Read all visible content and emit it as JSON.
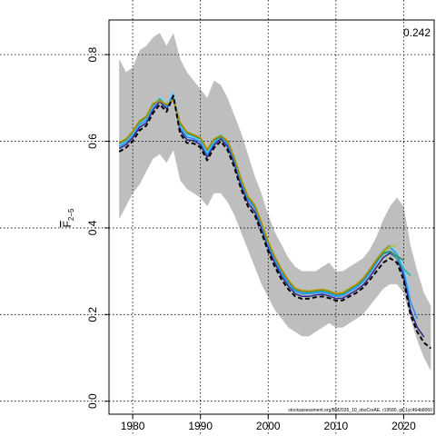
{
  "chart_data": {
    "type": "line",
    "title": "",
    "xlabel": "",
    "ylabel": "F2-5",
    "ylabel_main": "F",
    "ylabel_sub": "2−5",
    "corner_value": "0.242",
    "footer_note": "stockassessment.org/BM2026_10_obsCorAE, r19580, git:1cc464b8060",
    "xlim": [
      1976.5,
      2024.5
    ],
    "ylim": [
      -0.03,
      0.88
    ],
    "x_ticks": [
      1980,
      1990,
      2000,
      2010,
      2020
    ],
    "y_ticks": [
      0.0,
      0.2,
      0.4,
      0.6,
      0.8
    ],
    "x_tick_labels": [
      "1980",
      "1990",
      "2000",
      "2010",
      "2020"
    ],
    "y_tick_labels": [
      "0.0",
      "0.2",
      "0.4",
      "0.6",
      "0.8"
    ],
    "grid": true,
    "colors": {
      "band": "#bebebe",
      "main": "#000000",
      "retro": [
        "#2a2a8c",
        "#1e90ff",
        "#87ceeb",
        "#20b2aa",
        "#2e8b57",
        "#9acd32",
        "#b8860b"
      ]
    },
    "band": {
      "x": [
        1978,
        1979,
        1980,
        1981,
        1982,
        1983,
        1984,
        1985,
        1986,
        1987,
        1988,
        1989,
        1990,
        1991,
        1992,
        1993,
        1994,
        1995,
        1996,
        1997,
        1998,
        1999,
        2000,
        2001,
        2002,
        2003,
        2004,
        2005,
        2006,
        2007,
        2008,
        2009,
        2010,
        2011,
        2012,
        2013,
        2014,
        2015,
        2016,
        2017,
        2018,
        2019,
        2020,
        2021,
        2022,
        2023,
        2024
      ],
      "upper": [
        0.79,
        0.76,
        0.77,
        0.81,
        0.82,
        0.84,
        0.85,
        0.82,
        0.85,
        0.79,
        0.76,
        0.74,
        0.72,
        0.7,
        0.74,
        0.73,
        0.7,
        0.66,
        0.62,
        0.57,
        0.52,
        0.48,
        0.43,
        0.39,
        0.36,
        0.33,
        0.31,
        0.3,
        0.3,
        0.3,
        0.31,
        0.32,
        0.3,
        0.3,
        0.31,
        0.32,
        0.33,
        0.35,
        0.38,
        0.42,
        0.45,
        0.47,
        0.45,
        0.36,
        0.3,
        0.25,
        0.22
      ],
      "lower": [
        0.42,
        0.45,
        0.48,
        0.5,
        0.53,
        0.56,
        0.57,
        0.55,
        0.58,
        0.51,
        0.49,
        0.48,
        0.47,
        0.45,
        0.48,
        0.48,
        0.46,
        0.43,
        0.39,
        0.35,
        0.31,
        0.27,
        0.24,
        0.21,
        0.19,
        0.17,
        0.16,
        0.15,
        0.15,
        0.16,
        0.17,
        0.18,
        0.17,
        0.17,
        0.18,
        0.19,
        0.2,
        0.22,
        0.24,
        0.26,
        0.27,
        0.27,
        0.25,
        0.19,
        0.14,
        0.1,
        0.07
      ]
    },
    "series": [
      {
        "x": [
          1978,
          1979,
          1980,
          1981,
          1982,
          1983,
          1984,
          1985,
          1986,
          1987,
          1988,
          1989,
          1990,
          1991,
          1992,
          1993,
          1994,
          1995,
          1996,
          1997,
          1998,
          1999,
          2000,
          2001,
          2002,
          2003,
          2004,
          2005,
          2006,
          2007,
          2008,
          2009,
          2010,
          2011,
          2012,
          2013,
          2014,
          2015,
          2016,
          2017,
          2018,
          2019,
          2020,
          2021,
          2022,
          2023,
          2024
        ],
        "values": [
          0.576,
          0.585,
          0.6,
          0.625,
          0.636,
          0.665,
          0.685,
          0.668,
          0.705,
          0.618,
          0.596,
          0.595,
          0.586,
          0.556,
          0.585,
          0.6,
          0.58,
          0.54,
          0.49,
          0.45,
          0.43,
          0.39,
          0.345,
          0.31,
          0.28,
          0.258,
          0.242,
          0.236,
          0.237,
          0.24,
          0.242,
          0.238,
          0.232,
          0.233,
          0.242,
          0.25,
          0.262,
          0.28,
          0.3,
          0.32,
          0.33,
          0.32,
          0.28,
          0.2,
          0.16,
          0.135,
          0.122
        ],
        "dashed": true,
        "color_index": -1
      },
      {
        "x": [
          1978,
          1979,
          1980,
          1981,
          1982,
          1983,
          1984,
          1985,
          1986,
          1987,
          1988,
          1989,
          1990,
          1991,
          1992,
          1993,
          1994,
          1995,
          1996,
          1997,
          1998,
          1999,
          2000,
          2001,
          2002,
          2003,
          2004,
          2005,
          2006,
          2007,
          2008,
          2009,
          2010,
          2011,
          2012,
          2013,
          2014,
          2015,
          2016,
          2017,
          2018,
          2019,
          2020,
          2021,
          2022,
          2023
        ],
        "values": [
          0.583,
          0.592,
          0.608,
          0.632,
          0.642,
          0.672,
          0.692,
          0.675,
          0.708,
          0.626,
          0.603,
          0.602,
          0.592,
          0.563,
          0.591,
          0.606,
          0.588,
          0.548,
          0.498,
          0.458,
          0.438,
          0.398,
          0.353,
          0.318,
          0.288,
          0.265,
          0.248,
          0.242,
          0.242,
          0.245,
          0.247,
          0.243,
          0.237,
          0.238,
          0.247,
          0.256,
          0.268,
          0.287,
          0.31,
          0.332,
          0.342,
          0.33,
          0.29,
          0.21,
          0.17,
          0.148
        ],
        "dashed": false,
        "color_index": 0
      },
      {
        "x": [
          1978,
          1979,
          1980,
          1981,
          1982,
          1983,
          1984,
          1985,
          1986,
          1987,
          1988,
          1989,
          1990,
          1991,
          1992,
          1993,
          1994,
          1995,
          1996,
          1997,
          1998,
          1999,
          2000,
          2001,
          2002,
          2003,
          2004,
          2005,
          2006,
          2007,
          2008,
          2009,
          2010,
          2011,
          2012,
          2013,
          2014,
          2015,
          2016,
          2017,
          2018,
          2019,
          2020,
          2021,
          2022
        ],
        "values": [
          0.588,
          0.597,
          0.614,
          0.638,
          0.648,
          0.678,
          0.698,
          0.68,
          0.712,
          0.632,
          0.61,
          0.606,
          0.598,
          0.57,
          0.596,
          0.612,
          0.594,
          0.556,
          0.505,
          0.466,
          0.446,
          0.406,
          0.36,
          0.326,
          0.295,
          0.272,
          0.254,
          0.248,
          0.248,
          0.25,
          0.252,
          0.248,
          0.242,
          0.244,
          0.254,
          0.262,
          0.276,
          0.296,
          0.32,
          0.345,
          0.355,
          0.34,
          0.3,
          0.23,
          0.19
        ],
        "dashed": false,
        "color_index": 1
      },
      {
        "x": [
          1978,
          1979,
          1980,
          1981,
          1982,
          1983,
          1984,
          1985,
          1986,
          1987,
          1988,
          1989,
          1990,
          1991,
          1992,
          1993,
          1994,
          1995,
          1996,
          1997,
          1998,
          1999,
          2000,
          2001,
          2002,
          2003,
          2004,
          2005,
          2006,
          2007,
          2008,
          2009,
          2010,
          2011,
          2012,
          2013,
          2014,
          2015,
          2016,
          2017,
          2018,
          2019,
          2020,
          2021
        ],
        "values": [
          0.592,
          0.6,
          0.618,
          0.642,
          0.652,
          0.682,
          0.702,
          0.684,
          0.716,
          0.638,
          0.615,
          0.61,
          0.603,
          0.575,
          0.6,
          0.618,
          0.6,
          0.562,
          0.512,
          0.472,
          0.452,
          0.412,
          0.366,
          0.332,
          0.3,
          0.277,
          0.258,
          0.252,
          0.252,
          0.254,
          0.256,
          0.252,
          0.246,
          0.248,
          0.258,
          0.266,
          0.282,
          0.304,
          0.33,
          0.352,
          0.36,
          0.345,
          0.31,
          0.25
        ],
        "dashed": false,
        "color_index": 2
      },
      {
        "x": [
          1978,
          1979,
          1980,
          1981,
          1982,
          1983,
          1984,
          1985,
          1986,
          1987,
          1988,
          1989,
          1990,
          1991,
          1992,
          1993,
          1994,
          1995,
          1996,
          1997,
          1998,
          1999,
          2000,
          2001,
          2002,
          2003,
          2004,
          2005,
          2006,
          2007,
          2008,
          2009,
          2010,
          2011,
          2012,
          2013,
          2014,
          2015,
          2016,
          2017,
          2018,
          2019,
          2020,
          2021
        ],
        "values": [
          0.594,
          0.602,
          0.62,
          0.644,
          0.654,
          0.684,
          0.698,
          0.682,
          0.7,
          0.64,
          0.618,
          0.612,
          0.605,
          0.578,
          0.602,
          0.61,
          0.598,
          0.56,
          0.51,
          0.47,
          0.45,
          0.41,
          0.365,
          0.33,
          0.3,
          0.276,
          0.257,
          0.252,
          0.251,
          0.253,
          0.255,
          0.251,
          0.245,
          0.247,
          0.257,
          0.266,
          0.28,
          0.3,
          0.322,
          0.34,
          0.345,
          0.33,
          0.305,
          0.29
        ],
        "dashed": false,
        "color_index": 3
      },
      {
        "x": [
          1978,
          1979,
          1980,
          1981,
          1982,
          1983,
          1984,
          1985,
          1986,
          1987,
          1988,
          1989,
          1990,
          1991,
          1992,
          1993,
          1994,
          1995,
          1996,
          1997,
          1998,
          1999,
          2000,
          2001,
          2002,
          2003,
          2004,
          2005,
          2006,
          2007,
          2008,
          2009,
          2010,
          2011,
          2012,
          2013,
          2014,
          2015,
          2016,
          2017,
          2018,
          2019,
          2020
        ],
        "values": [
          0.596,
          0.604,
          0.622,
          0.646,
          0.656,
          0.686,
          0.696,
          0.684,
          0.698,
          0.642,
          0.62,
          0.614,
          0.607,
          0.58,
          0.604,
          0.612,
          0.6,
          0.562,
          0.512,
          0.472,
          0.452,
          0.412,
          0.367,
          0.332,
          0.302,
          0.278,
          0.259,
          0.254,
          0.253,
          0.255,
          0.257,
          0.253,
          0.247,
          0.249,
          0.259,
          0.268,
          0.282,
          0.302,
          0.324,
          0.342,
          0.346,
          0.335,
          0.325
        ],
        "dashed": false,
        "color_index": 4
      },
      {
        "x": [
          1978,
          1979,
          1980,
          1981,
          1982,
          1983,
          1984,
          1985,
          1986,
          1987,
          1988,
          1989,
          1990,
          1991,
          1992,
          1993,
          1994,
          1995,
          1996,
          1997,
          1998,
          1999,
          2000,
          2001,
          2002,
          2003,
          2004,
          2005,
          2006,
          2007,
          2008,
          2009,
          2010,
          2011,
          2012,
          2013,
          2014,
          2015,
          2016,
          2017,
          2018,
          2019
        ],
        "values": [
          0.598,
          0.606,
          0.624,
          0.648,
          0.658,
          0.688,
          0.694,
          0.686,
          0.696,
          0.644,
          0.622,
          0.616,
          0.609,
          0.582,
          0.606,
          0.614,
          0.602,
          0.564,
          0.514,
          0.474,
          0.454,
          0.414,
          0.369,
          0.334,
          0.304,
          0.28,
          0.261,
          0.256,
          0.255,
          0.257,
          0.259,
          0.255,
          0.249,
          0.251,
          0.261,
          0.27,
          0.284,
          0.305,
          0.328,
          0.346,
          0.355,
          0.362
        ],
        "dashed": false,
        "color_index": 5
      },
      {
        "x": [
          1978,
          1979,
          1980,
          1981,
          1982,
          1983,
          1984,
          1985,
          1986,
          1987,
          1988,
          1989,
          1990,
          1991,
          1992,
          1993,
          1994,
          1995,
          1996,
          1997,
          1998,
          1999,
          2000,
          2001,
          2002,
          2003,
          2004,
          2005,
          2006,
          2007,
          2008,
          2009,
          2010,
          2011,
          2012,
          2013,
          2014,
          2015,
          2016,
          2017,
          2018
        ],
        "values": [
          0.597,
          0.605,
          0.623,
          0.647,
          0.657,
          0.687,
          0.693,
          0.685,
          0.695,
          0.643,
          0.621,
          0.615,
          0.608,
          0.581,
          0.605,
          0.613,
          0.601,
          0.563,
          0.513,
          0.473,
          0.453,
          0.413,
          0.368,
          0.333,
          0.303,
          0.279,
          0.26,
          0.255,
          0.254,
          0.256,
          0.258,
          0.254,
          0.248,
          0.25,
          0.26,
          0.269,
          0.283,
          0.304,
          0.327,
          0.348,
          0.36
        ],
        "dashed": false,
        "color_index": 6
      }
    ]
  }
}
